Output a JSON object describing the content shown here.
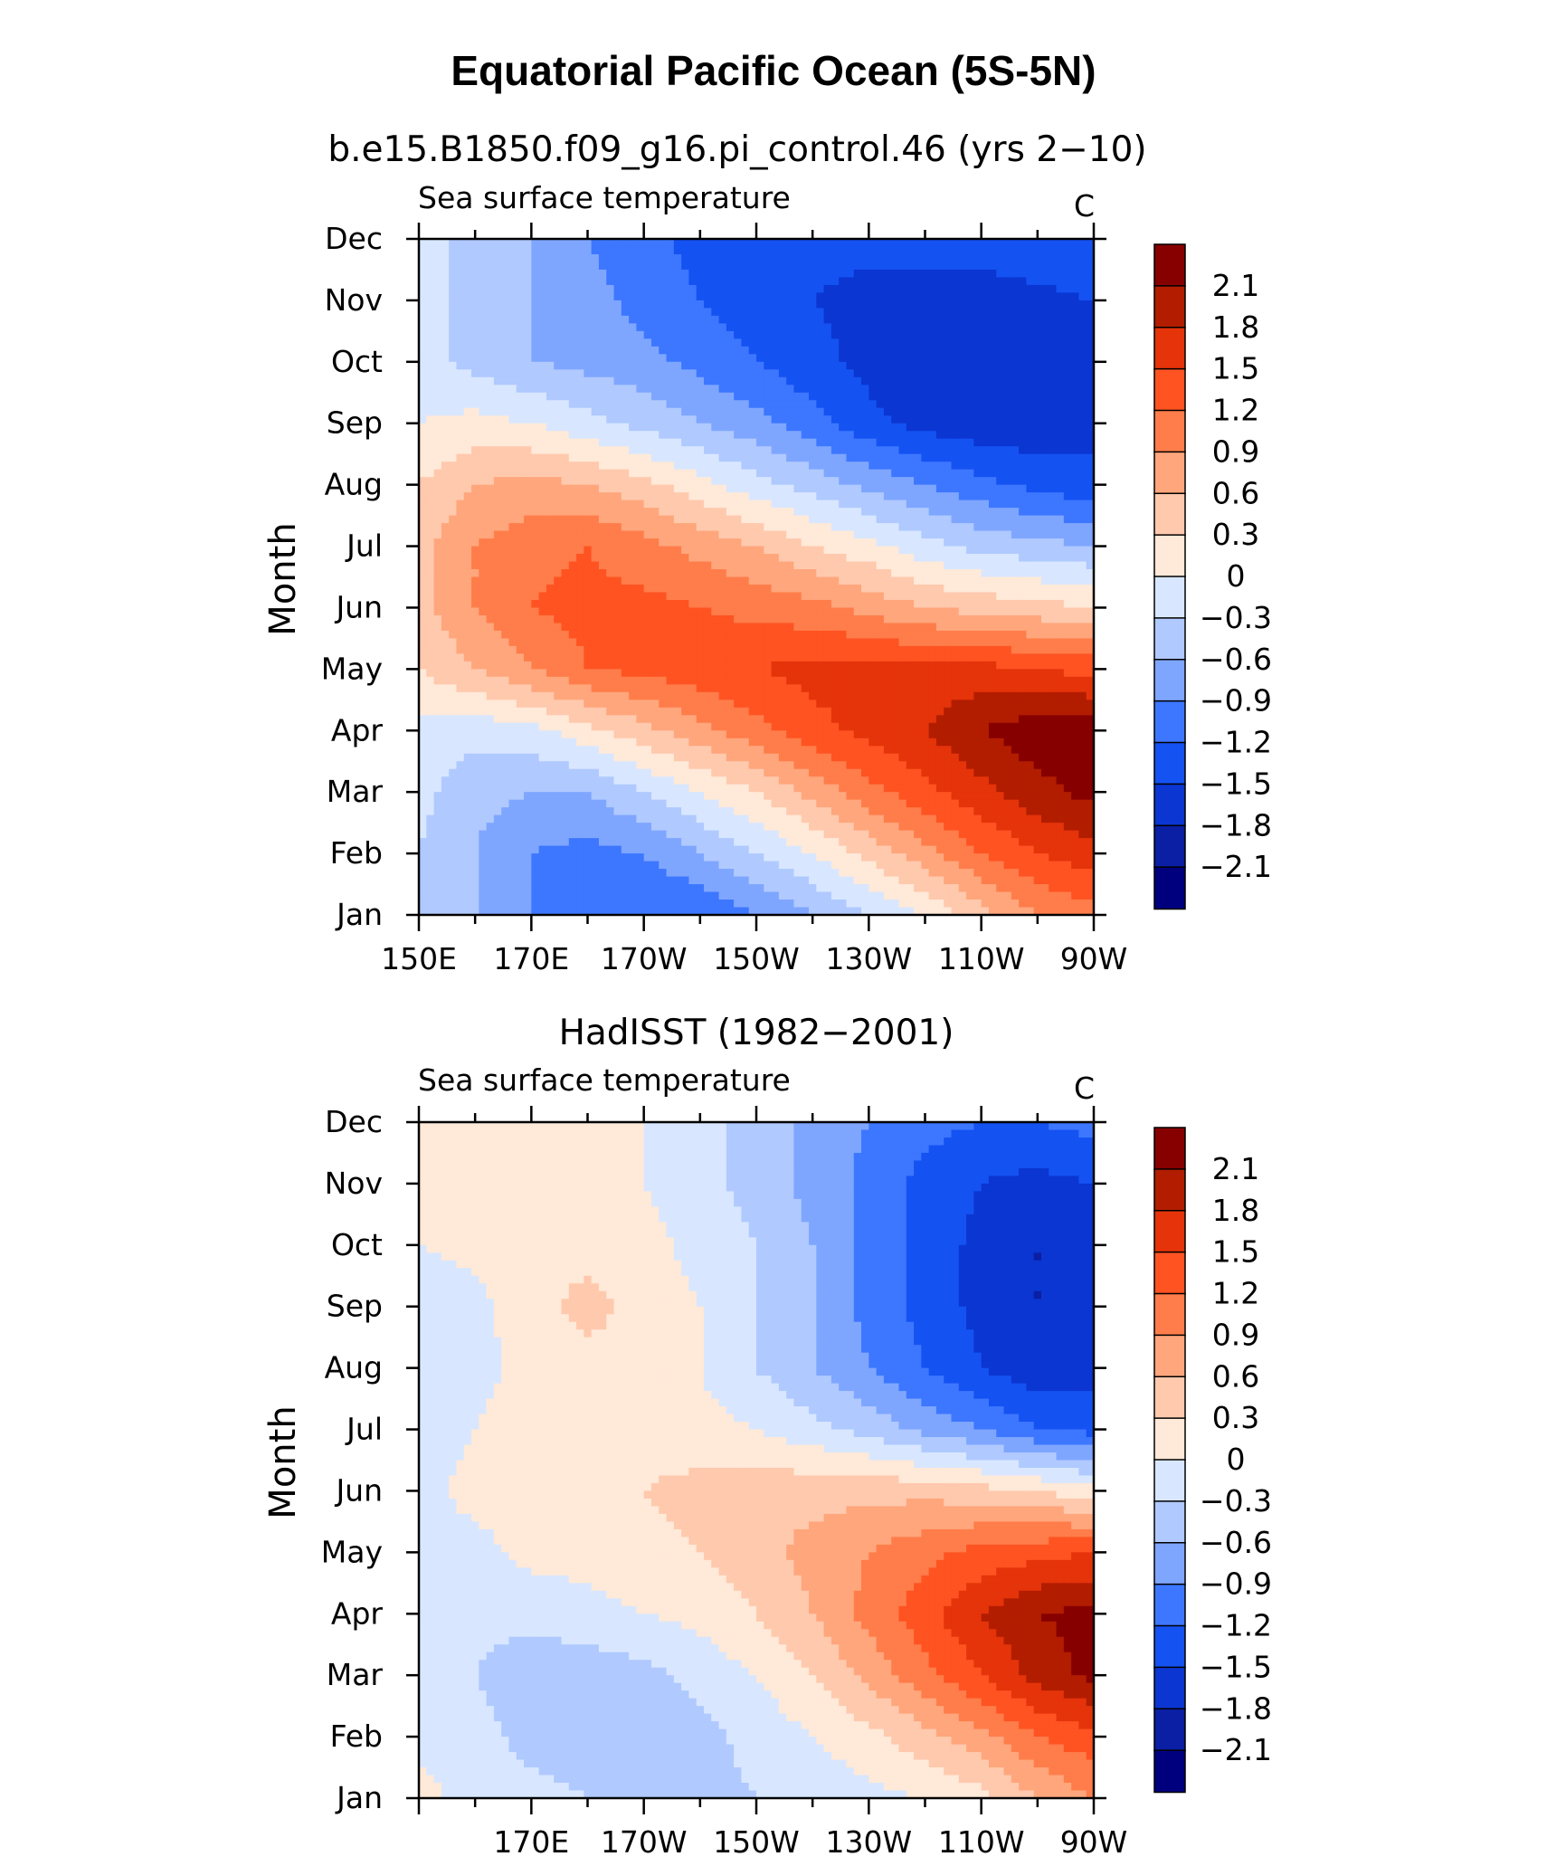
{
  "figure": {
    "title": "Equatorial Pacific Ocean (5S-5N)"
  },
  "colors": {
    "levels": [
      "#00007f",
      "#0a1fa3",
      "#0b36d1",
      "#1552f2",
      "#3d77ff",
      "#7fa6ff",
      "#b0c9ff",
      "#d8e7ff",
      "#ffe9d8",
      "#ffc9ad",
      "#ffa67c",
      "#ff7d4a",
      "#ff5322",
      "#e5330a",
      "#b21d00",
      "#870000"
    ]
  },
  "chart_data": [
    {
      "type": "heatmap",
      "id": "top",
      "title": "b.e15.B1850.f09_g16.pi_control.46 (yrs 2−10)",
      "subtitle_left": "Sea surface temperature",
      "subtitle_right": "C",
      "ylabel": "Month",
      "x_range": [
        150,
        270
      ],
      "x_ticks": [
        150,
        170,
        190,
        210,
        230,
        250,
        270
      ],
      "x_tick_labels": [
        "150E",
        "170E",
        "170W",
        "150W",
        "130W",
        "110W",
        "90W"
      ],
      "y_tick_labels": [
        "Jan",
        "Feb",
        "Mar",
        "Apr",
        "May",
        "Jun",
        "Jul",
        "Aug",
        "Sep",
        "Oct",
        "Nov",
        "Dec"
      ],
      "contour_levels": [
        -2.1,
        -1.8,
        -1.5,
        -1.2,
        -0.9,
        -0.6,
        -0.3,
        0,
        0.3,
        0.6,
        0.9,
        1.2,
        1.5,
        1.8,
        2.1
      ],
      "colorbar_labels": [
        "2.1",
        "1.8",
        "1.5",
        "1.2",
        "0.9",
        "0.6",
        "0.3",
        "0",
        "−0.3",
        "−0.6",
        "−0.9",
        "−1.2",
        "−1.5",
        "−1.8",
        "−2.1"
      ],
      "x": [
        150,
        160,
        170,
        180,
        190,
        200,
        210,
        220,
        230,
        240,
        250,
        260,
        270
      ],
      "values": [
        [
          -0.3,
          -0.6,
          -0.9,
          -1.2,
          -1.2,
          -1.2,
          -0.9,
          -0.6,
          -0.3,
          0.0,
          0.5,
          0.9,
          1.1
        ],
        [
          -0.3,
          -0.6,
          -0.9,
          -1.0,
          -0.9,
          -0.6,
          -0.3,
          0.0,
          0.4,
          0.8,
          1.2,
          1.5,
          1.7
        ],
        [
          -0.2,
          -0.5,
          -0.6,
          -0.6,
          -0.3,
          0.0,
          0.3,
          0.7,
          1.1,
          1.4,
          1.7,
          2.0,
          2.2
        ],
        [
          -0.1,
          -0.2,
          -0.1,
          0.2,
          0.5,
          0.8,
          1.1,
          1.4,
          1.6,
          1.8,
          2.1,
          2.3,
          2.3
        ],
        [
          0.3,
          0.6,
          0.9,
          1.2,
          1.3,
          1.4,
          1.5,
          1.6,
          1.6,
          1.6,
          1.6,
          1.5,
          1.4
        ],
        [
          0.5,
          0.9,
          1.2,
          1.3,
          1.3,
          1.2,
          1.1,
          1.0,
          0.8,
          0.6,
          0.5,
          0.4,
          0.3
        ],
        [
          0.5,
          0.9,
          1.1,
          1.2,
          1.0,
          0.8,
          0.6,
          0.3,
          0.1,
          -0.2,
          -0.4,
          -0.5,
          -0.6
        ],
        [
          0.3,
          0.6,
          0.7,
          0.6,
          0.4,
          0.1,
          -0.2,
          -0.4,
          -0.7,
          -0.9,
          -1.1,
          -1.3,
          -1.4
        ],
        [
          0.0,
          0.1,
          0.0,
          -0.2,
          -0.4,
          -0.6,
          -0.8,
          -1.1,
          -1.4,
          -1.6,
          -1.7,
          -1.7,
          -1.6
        ],
        [
          -0.2,
          -0.4,
          -0.6,
          -0.7,
          -0.8,
          -1.0,
          -1.2,
          -1.4,
          -1.6,
          -1.8,
          -1.8,
          -1.7,
          -1.6
        ],
        [
          -0.2,
          -0.4,
          -0.6,
          -0.8,
          -1.0,
          -1.2,
          -1.4,
          -1.5,
          -1.6,
          -1.7,
          -1.7,
          -1.6,
          -1.5
        ],
        [
          -0.2,
          -0.4,
          -0.6,
          -0.9,
          -1.1,
          -1.3,
          -1.4,
          -1.4,
          -1.4,
          -1.3,
          -1.3,
          -1.2,
          -1.2
        ]
      ]
    },
    {
      "type": "heatmap",
      "id": "bottom",
      "title": "HadISST (1982−2001)",
      "subtitle_left": "Sea surface temperature",
      "subtitle_right": "C",
      "ylabel": "Month",
      "x_range": [
        150,
        270
      ],
      "x_ticks": [
        170,
        190,
        210,
        230,
        250,
        270
      ],
      "x_tick_labels": [
        "170E",
        "170W",
        "150W",
        "130W",
        "110W",
        "90W"
      ],
      "y_tick_labels": [
        "Jan",
        "Feb",
        "Mar",
        "Apr",
        "May",
        "Jun",
        "Jul",
        "Aug",
        "Sep",
        "Oct",
        "Nov",
        "Dec"
      ],
      "contour_levels": [
        -2.1,
        -1.8,
        -1.5,
        -1.2,
        -0.9,
        -0.6,
        -0.3,
        0,
        0.3,
        0.6,
        0.9,
        1.2,
        1.5,
        1.8,
        2.1
      ],
      "colorbar_labels": [
        "2.1",
        "1.8",
        "1.5",
        "1.2",
        "0.9",
        "0.6",
        "0.3",
        "0",
        "−0.3",
        "−0.6",
        "−0.9",
        "−1.2",
        "−1.5",
        "−1.8",
        "−2.1"
      ],
      "x": [
        150,
        160,
        170,
        180,
        190,
        200,
        210,
        220,
        230,
        240,
        250,
        260,
        270
      ],
      "values": [
        [
          0.1,
          -0.1,
          -0.2,
          -0.3,
          -0.4,
          -0.4,
          -0.3,
          -0.2,
          -0.1,
          0.0,
          0.2,
          0.6,
          0.9
        ],
        [
          -0.1,
          -0.2,
          -0.4,
          -0.5,
          -0.5,
          -0.4,
          -0.2,
          0.0,
          0.2,
          0.5,
          0.8,
          1.2,
          1.4
        ],
        [
          -0.2,
          -0.3,
          -0.5,
          -0.5,
          -0.4,
          -0.2,
          0.0,
          0.3,
          0.7,
          1.1,
          1.5,
          1.9,
          2.2
        ],
        [
          -0.2,
          -0.2,
          -0.2,
          -0.1,
          0.0,
          0.1,
          0.3,
          0.6,
          1.0,
          1.4,
          1.8,
          2.1,
          2.2
        ],
        [
          -0.1,
          -0.1,
          0.1,
          0.1,
          0.2,
          0.3,
          0.5,
          0.7,
          0.9,
          1.1,
          1.3,
          1.4,
          1.5
        ],
        [
          -0.1,
          0.1,
          0.1,
          0.2,
          0.3,
          0.4,
          0.5,
          0.5,
          0.5,
          0.5,
          0.4,
          0.3,
          0.1
        ],
        [
          -0.2,
          0.0,
          0.2,
          0.2,
          0.2,
          0.1,
          0.0,
          -0.2,
          -0.4,
          -0.7,
          -0.9,
          -1.2,
          -1.3
        ],
        [
          -0.3,
          -0.1,
          0.1,
          0.2,
          0.2,
          0.0,
          -0.3,
          -0.6,
          -0.9,
          -1.2,
          -1.5,
          -1.7,
          -1.6
        ],
        [
          -0.2,
          -0.1,
          0.2,
          0.4,
          0.2,
          0.0,
          -0.3,
          -0.6,
          -1.0,
          -1.3,
          -1.6,
          -1.8,
          -1.8
        ],
        [
          0.0,
          0.1,
          0.2,
          0.2,
          0.1,
          -0.1,
          -0.3,
          -0.6,
          -1.0,
          -1.3,
          -1.6,
          -1.8,
          -1.7
        ],
        [
          0.1,
          0.1,
          0.2,
          0.1,
          0.0,
          -0.2,
          -0.4,
          -0.7,
          -1.0,
          -1.3,
          -1.5,
          -1.6,
          -1.5
        ],
        [
          0.1,
          0.1,
          0.1,
          0.1,
          0.0,
          -0.2,
          -0.4,
          -0.7,
          -0.9,
          -1.1,
          -1.2,
          -1.2,
          -1.1
        ]
      ]
    }
  ]
}
